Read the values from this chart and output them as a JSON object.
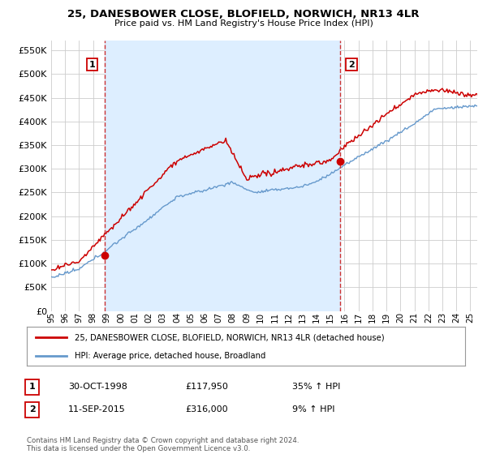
{
  "title": "25, DANESBOWER CLOSE, BLOFIELD, NORWICH, NR13 4LR",
  "subtitle": "Price paid vs. HM Land Registry's House Price Index (HPI)",
  "legend_line1": "25, DANESBOWER CLOSE, BLOFIELD, NORWICH, NR13 4LR (detached house)",
  "legend_line2": "HPI: Average price, detached house, Broadland",
  "annotation1_label": "1",
  "annotation1_date": "30-OCT-1998",
  "annotation1_price": "£117,950",
  "annotation1_hpi": "35% ↑ HPI",
  "annotation2_label": "2",
  "annotation2_date": "11-SEP-2015",
  "annotation2_price": "£316,000",
  "annotation2_hpi": "9% ↑ HPI",
  "footer": "Contains HM Land Registry data © Crown copyright and database right 2024.\nThis data is licensed under the Open Government Licence v3.0.",
  "sale1_x": 1998.83,
  "sale1_y": 117950,
  "sale2_x": 2015.7,
  "sale2_y": 316000,
  "price_line_color": "#cc0000",
  "hpi_line_color": "#6699cc",
  "shade_color": "#ddeeff",
  "sale_marker_color": "#cc0000",
  "vline_color": "#cc3333",
  "background_color": "#ffffff",
  "grid_color": "#cccccc",
  "ylim": [
    0,
    570000
  ],
  "xlim_start": 1995.0,
  "xlim_end": 2025.5,
  "yticks": [
    0,
    50000,
    100000,
    150000,
    200000,
    250000,
    300000,
    350000,
    400000,
    450000,
    500000,
    550000
  ],
  "xticks": [
    1995,
    1996,
    1997,
    1998,
    1999,
    2000,
    2001,
    2002,
    2003,
    2004,
    2005,
    2006,
    2007,
    2008,
    2009,
    2010,
    2011,
    2012,
    2013,
    2014,
    2015,
    2016,
    2017,
    2018,
    2019,
    2020,
    2021,
    2022,
    2023,
    2024,
    2025
  ]
}
